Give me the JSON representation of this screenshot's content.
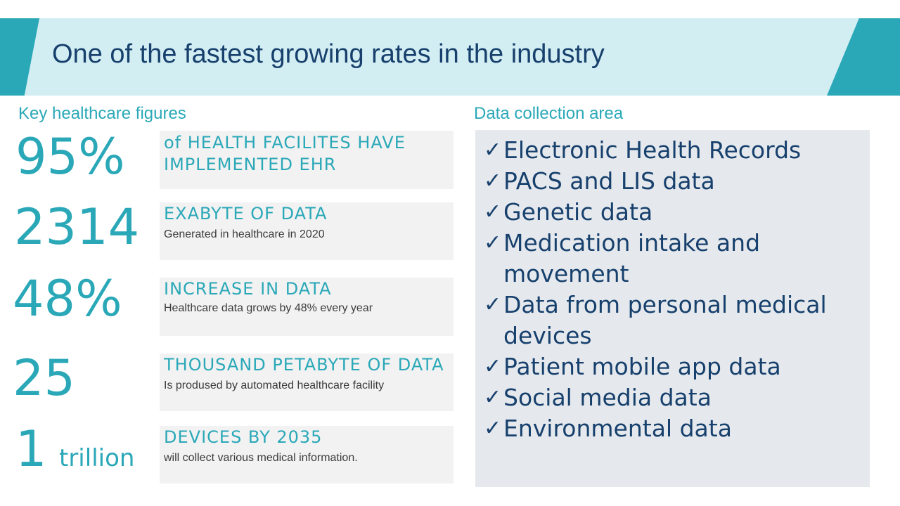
{
  "title": "One of the fastest growing rates in the industry",
  "left_label": "Key healthcare figures",
  "right_label": "Data collection area",
  "figures": [
    {
      "value": "95%",
      "suffix": "",
      "heading": "of HEALTH FACILITES HAVE IMPLEMENTED EHR",
      "detail": ""
    },
    {
      "value": "2314",
      "suffix": "",
      "heading": "EXABYTE OF DATA",
      "detail": "Generated in healthcare in 2020"
    },
    {
      "value": "48%",
      "suffix": "",
      "heading": "INCREASE IN DATA",
      "detail": "Healthcare  data grows by 48% every year"
    },
    {
      "value": "25",
      "suffix": "",
      "heading": "THOUSAND PETABYTE OF DATA",
      "detail": "Is prodused by automated healthcare facility"
    },
    {
      "value": "1",
      "suffix": "trillion",
      "heading": "DEVICES BY 2035",
      "detail": "will collect various medical information."
    }
  ],
  "data_areas": [
    "Electronic Health Records",
    "PACS and LIS data",
    "Genetic data",
    "Medication intake and movement",
    "Data from personal medical devices",
    "Patient mobile app data",
    "Social media data",
    "Environmental data"
  ],
  "check_glyph": "✓",
  "colors": {
    "accent": "#2aa8b8",
    "banner": "#d3eef3",
    "title": "#17406d",
    "box": "#f2f2f2",
    "panel": "#e5e9ed"
  }
}
